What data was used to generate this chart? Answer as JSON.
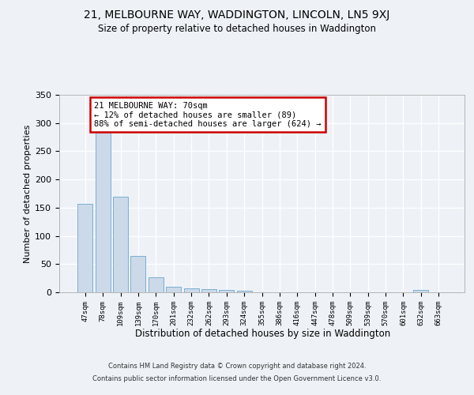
{
  "title": "21, MELBOURNE WAY, WADDINGTON, LINCOLN, LN5 9XJ",
  "subtitle": "Size of property relative to detached houses in Waddington",
  "xlabel": "Distribution of detached houses by size in Waddington",
  "ylabel": "Number of detached properties",
  "categories": [
    "47sqm",
    "78sqm",
    "109sqm",
    "139sqm",
    "170sqm",
    "201sqm",
    "232sqm",
    "262sqm",
    "293sqm",
    "324sqm",
    "355sqm",
    "386sqm",
    "416sqm",
    "447sqm",
    "478sqm",
    "509sqm",
    "539sqm",
    "570sqm",
    "601sqm",
    "632sqm",
    "663sqm"
  ],
  "values": [
    157,
    285,
    170,
    65,
    26,
    10,
    7,
    6,
    4,
    3,
    0,
    0,
    0,
    0,
    0,
    0,
    0,
    0,
    0,
    4,
    0
  ],
  "bar_color": "#ccd9e8",
  "bar_edge_color": "#7aaed4",
  "background_color": "#eef2f7",
  "plot_bg_color": "#eef2f7",
  "annotation_box_text": "21 MELBOURNE WAY: 70sqm\n← 12% of detached houses are smaller (89)\n88% of semi-detached houses are larger (624) →",
  "annotation_box_color": "#ffffff",
  "annotation_box_edge_color": "#cc0000",
  "ylim": [
    0,
    350
  ],
  "yticks": [
    0,
    50,
    100,
    150,
    200,
    250,
    300,
    350
  ],
  "footer_line1": "Contains HM Land Registry data © Crown copyright and database right 2024.",
  "footer_line2": "Contains public sector information licensed under the Open Government Licence v3.0."
}
